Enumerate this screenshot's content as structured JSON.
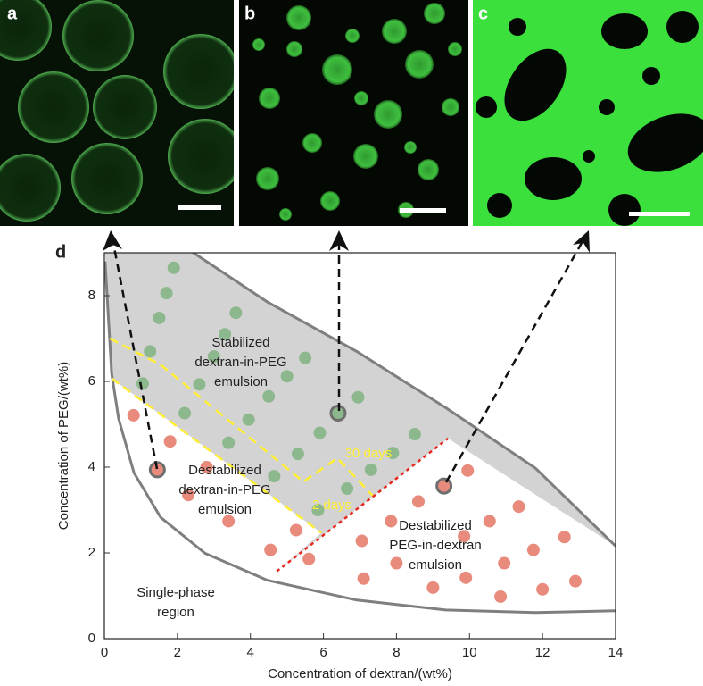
{
  "panels": [
    {
      "label": "a"
    },
    {
      "label": "b"
    },
    {
      "label": "c"
    }
  ],
  "chart_data": {
    "type": "scatter",
    "panel_label": "d",
    "xlabel": "Concentration of dextran/(wt%)",
    "ylabel": "Concentration of PEG/(wt%)",
    "xlim": [
      0,
      14
    ],
    "ylim": [
      0,
      9
    ],
    "xticks": [
      0,
      2,
      4,
      6,
      8,
      10,
      12,
      14
    ],
    "yticks": [
      0,
      2,
      4,
      6,
      8
    ],
    "series": [
      {
        "color": "#8db88d",
        "edgecolor": "#6e6e6e",
        "highlight": [
          18
        ],
        "x": [
          1.9,
          1.7,
          1.5,
          1.25,
          1.05,
          2.2,
          2.6,
          3.0,
          3.3,
          3.6,
          3.4,
          3.95,
          4.5,
          5.0,
          5.5,
          4.65,
          5.3,
          5.9,
          6.4,
          6.95,
          5.85,
          6.65,
          7.3,
          7.9,
          8.5
        ],
        "values": [
          8.65,
          8.06,
          7.48,
          6.7,
          5.95,
          5.26,
          5.93,
          6.58,
          7.1,
          7.6,
          4.57,
          5.11,
          5.65,
          6.12,
          6.55,
          3.79,
          4.31,
          4.8,
          5.26,
          5.63,
          3.0,
          3.5,
          3.94,
          4.33,
          4.77
        ]
      },
      {
        "color": "#e88b7c",
        "edgecolor": "#6e6e6e",
        "highlight": [
          2,
          15
        ],
        "x": [
          0.8,
          1.8,
          1.45,
          2.8,
          2.3,
          3.4,
          4.55,
          5.25,
          5.6,
          7.05,
          7.1,
          7.85,
          8.0,
          8.6,
          9.0,
          9.3,
          9.95,
          9.85,
          9.9,
          10.55,
          10.95,
          10.85,
          11.35,
          11.75,
          12.0,
          12.6,
          12.9
        ],
        "values": [
          5.21,
          4.6,
          3.94,
          4.0,
          3.35,
          2.74,
          2.07,
          2.53,
          1.86,
          2.28,
          1.4,
          2.74,
          1.76,
          3.2,
          1.19,
          3.56,
          3.92,
          2.39,
          1.42,
          2.74,
          1.76,
          0.98,
          3.08,
          2.07,
          1.15,
          2.37,
          1.34
        ]
      }
    ],
    "curves": [
      {
        "color": "#7f7f7f",
        "style": "solid",
        "x": [
          0.02,
          0.2,
          0.39,
          0.81,
          1.54,
          2.76,
          4.47,
          6.91,
          9.35,
          11.8,
          14.0
        ],
        "y": [
          8.8,
          6.18,
          5.13,
          3.87,
          2.83,
          1.99,
          1.36,
          0.9,
          0.67,
          0.61,
          0.65
        ]
      },
      {
        "color": "#7f7f7f",
        "style": "solid",
        "x": [
          2.35,
          4.47,
          6.91,
          9.36,
          11.8,
          14.0
        ],
        "y": [
          9.05,
          7.85,
          6.7,
          5.38,
          3.98,
          2.16
        ]
      },
      {
        "color": "#ffee33",
        "style": "dashed",
        "x": [
          0.15,
          1.54,
          5.45,
          6.38,
          7.35
        ],
        "y": [
          7.0,
          6.39,
          3.66,
          4.21,
          3.33
        ]
      },
      {
        "color": "#ffee33",
        "style": "dashed",
        "x": [
          0.2,
          5.94
        ],
        "y": [
          6.07,
          2.47
        ]
      },
      {
        "color": "#e8281e",
        "style": "dotted",
        "x": [
          4.72,
          9.41
        ],
        "y": [
          1.57,
          4.67
        ]
      }
    ],
    "annotations": [
      {
        "lines": [
          "Stabilized",
          "dextran-in-PEG",
          "emulsion"
        ]
      },
      {
        "lines": [
          "Destabilized",
          "dextran-in-PEG",
          "emulsion"
        ]
      },
      {
        "lines": [
          "Destabilized",
          "PEG-in-dextran",
          "emulsion"
        ]
      },
      {
        "lines": [
          "Single-phase",
          "region"
        ]
      },
      {
        "lines": [
          "30 days"
        ],
        "color": "#ffee33"
      },
      {
        "lines": [
          "2 days"
        ],
        "color": "#ffee33"
      }
    ]
  }
}
